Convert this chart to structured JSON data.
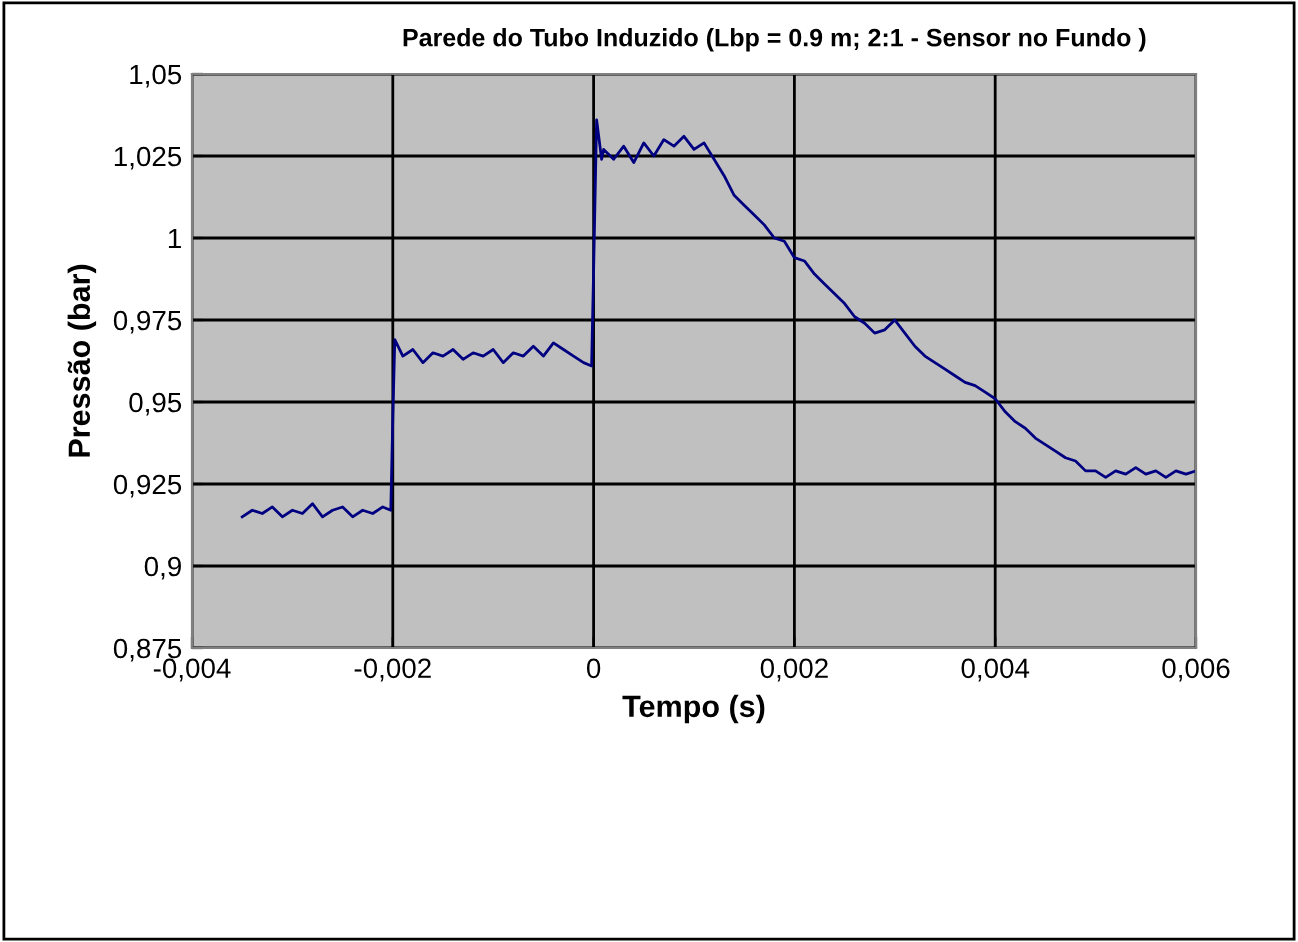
{
  "chart_data": {
    "type": "line",
    "title": "Parede do Tubo Induzido (Lbp = 0.9 m; 2:1 - Sensor no Fundo )",
    "xlabel": "Tempo (s)",
    "ylabel": "Pressão (bar)",
    "series": [
      {
        "color": "#000080",
        "x": [
          -0.0035,
          -0.0034,
          -0.0033,
          -0.0032,
          -0.0031,
          -0.003,
          -0.0029,
          -0.0028,
          -0.0027,
          -0.0026,
          -0.0025,
          -0.0024,
          -0.0023,
          -0.0022,
          -0.0021,
          -0.00202,
          -0.002,
          -0.00198,
          -0.0019,
          -0.0018,
          -0.0017,
          -0.0016,
          -0.0015,
          -0.0014,
          -0.0013,
          -0.0012,
          -0.0011,
          -0.001,
          -0.0009,
          -0.0008,
          -0.0007,
          -0.0006,
          -0.0005,
          -0.0004,
          -0.0003,
          -0.0002,
          -0.0001,
          -2e-05,
          0,
          3e-05,
          8e-05,
          0.0001,
          0.0002,
          0.0003,
          0.0004,
          0.0005,
          0.0006,
          0.0007,
          0.0008,
          0.0009,
          0.001,
          0.0011,
          0.0012,
          0.0013,
          0.0014,
          0.0015,
          0.0016,
          0.0017,
          0.0018,
          0.0019,
          0.002,
          0.0021,
          0.0022,
          0.0023,
          0.0024,
          0.0025,
          0.0026,
          0.0027,
          0.0028,
          0.0029,
          0.003,
          0.0031,
          0.0032,
          0.0033,
          0.0034,
          0.0035,
          0.0036,
          0.0037,
          0.0038,
          0.0039,
          0.004,
          0.0041,
          0.0042,
          0.0043,
          0.0044,
          0.0045,
          0.0046,
          0.0047,
          0.0048,
          0.0049,
          0.005,
          0.0051,
          0.0052,
          0.0053,
          0.0054,
          0.0055,
          0.0056,
          0.0057,
          0.0058,
          0.0059,
          0.006
        ],
        "values": [
          0.915,
          0.917,
          0.916,
          0.918,
          0.915,
          0.917,
          0.916,
          0.919,
          0.915,
          0.917,
          0.918,
          0.915,
          0.917,
          0.916,
          0.918,
          0.917,
          0.945,
          0.969,
          0.964,
          0.966,
          0.962,
          0.965,
          0.964,
          0.966,
          0.963,
          0.965,
          0.964,
          0.966,
          0.962,
          0.965,
          0.964,
          0.967,
          0.964,
          0.968,
          0.966,
          0.964,
          0.962,
          0.961,
          0.99,
          1.036,
          1.024,
          1.027,
          1.024,
          1.028,
          1.023,
          1.029,
          1.025,
          1.03,
          1.028,
          1.031,
          1.027,
          1.029,
          1.024,
          1.019,
          1.013,
          1.01,
          1.007,
          1.004,
          1.0,
          0.999,
          0.994,
          0.993,
          0.989,
          0.986,
          0.983,
          0.98,
          0.976,
          0.974,
          0.971,
          0.972,
          0.975,
          0.971,
          0.967,
          0.964,
          0.962,
          0.96,
          0.958,
          0.956,
          0.955,
          0.953,
          0.951,
          0.947,
          0.944,
          0.942,
          0.939,
          0.937,
          0.935,
          0.933,
          0.932,
          0.929,
          0.929,
          0.927,
          0.929,
          0.928,
          0.93,
          0.928,
          0.929,
          0.927,
          0.929,
          0.928,
          0.929
        ]
      }
    ],
    "xlim": [
      -0.004,
      0.006
    ],
    "ylim": [
      0.875,
      1.05
    ],
    "xticks": [
      {
        "value": -0.004,
        "label": "-0,004"
      },
      {
        "value": -0.002,
        "label": "-0,002"
      },
      0,
      {
        "value": 0.002,
        "label": "0,002"
      },
      {
        "value": 0.004,
        "label": "0,004"
      },
      {
        "value": 0.006,
        "label": "0,006"
      }
    ],
    "yticks": [
      {
        "value": 0.875,
        "label": "0,875"
      },
      {
        "value": 0.9,
        "label": "0,9"
      },
      {
        "value": 0.925,
        "label": "0,925"
      },
      {
        "value": 0.95,
        "label": "0,95"
      },
      {
        "value": 0.975,
        "label": "0,975"
      },
      {
        "value": 1,
        "label": "1"
      },
      {
        "value": 1.025,
        "label": "1,025"
      },
      {
        "value": 1.05,
        "label": "1,05"
      }
    ],
    "grid": true,
    "legend": false,
    "marker": "none",
    "line_style": "solid"
  }
}
